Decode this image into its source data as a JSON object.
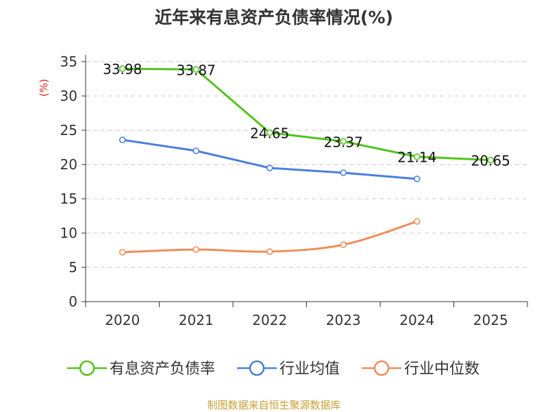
{
  "chart_data": {
    "type": "line",
    "title": "近年来有息资产负债率情况(%)",
    "ylabel": "(%)",
    "xlabel": "",
    "categories": [
      "2020",
      "2021",
      "2022",
      "2023",
      "2024",
      "2025"
    ],
    "ylim": [
      0,
      35
    ],
    "yticks": [
      0,
      5,
      10,
      15,
      20,
      25,
      30,
      35
    ],
    "grid": true,
    "legend_position": "bottom",
    "series": [
      {
        "name": "有息资产负债率",
        "color": "#52c41a",
        "values": [
          33.98,
          33.87,
          24.65,
          23.37,
          21.14,
          20.65
        ],
        "labels": [
          "33.98",
          "33.87",
          "24.65",
          "23.37",
          "21.14",
          "20.65"
        ],
        "smooth": false
      },
      {
        "name": "行业均值",
        "color": "#4a7fdb",
        "values": [
          23.6,
          22.0,
          19.5,
          18.8,
          17.9,
          null
        ],
        "smooth": false
      },
      {
        "name": "行业中位数",
        "color": "#f28c5a",
        "values": [
          7.2,
          7.6,
          7.3,
          8.3,
          11.7,
          null
        ],
        "smooth": true
      }
    ]
  },
  "source": "制图数据来自恒生聚源数据库"
}
